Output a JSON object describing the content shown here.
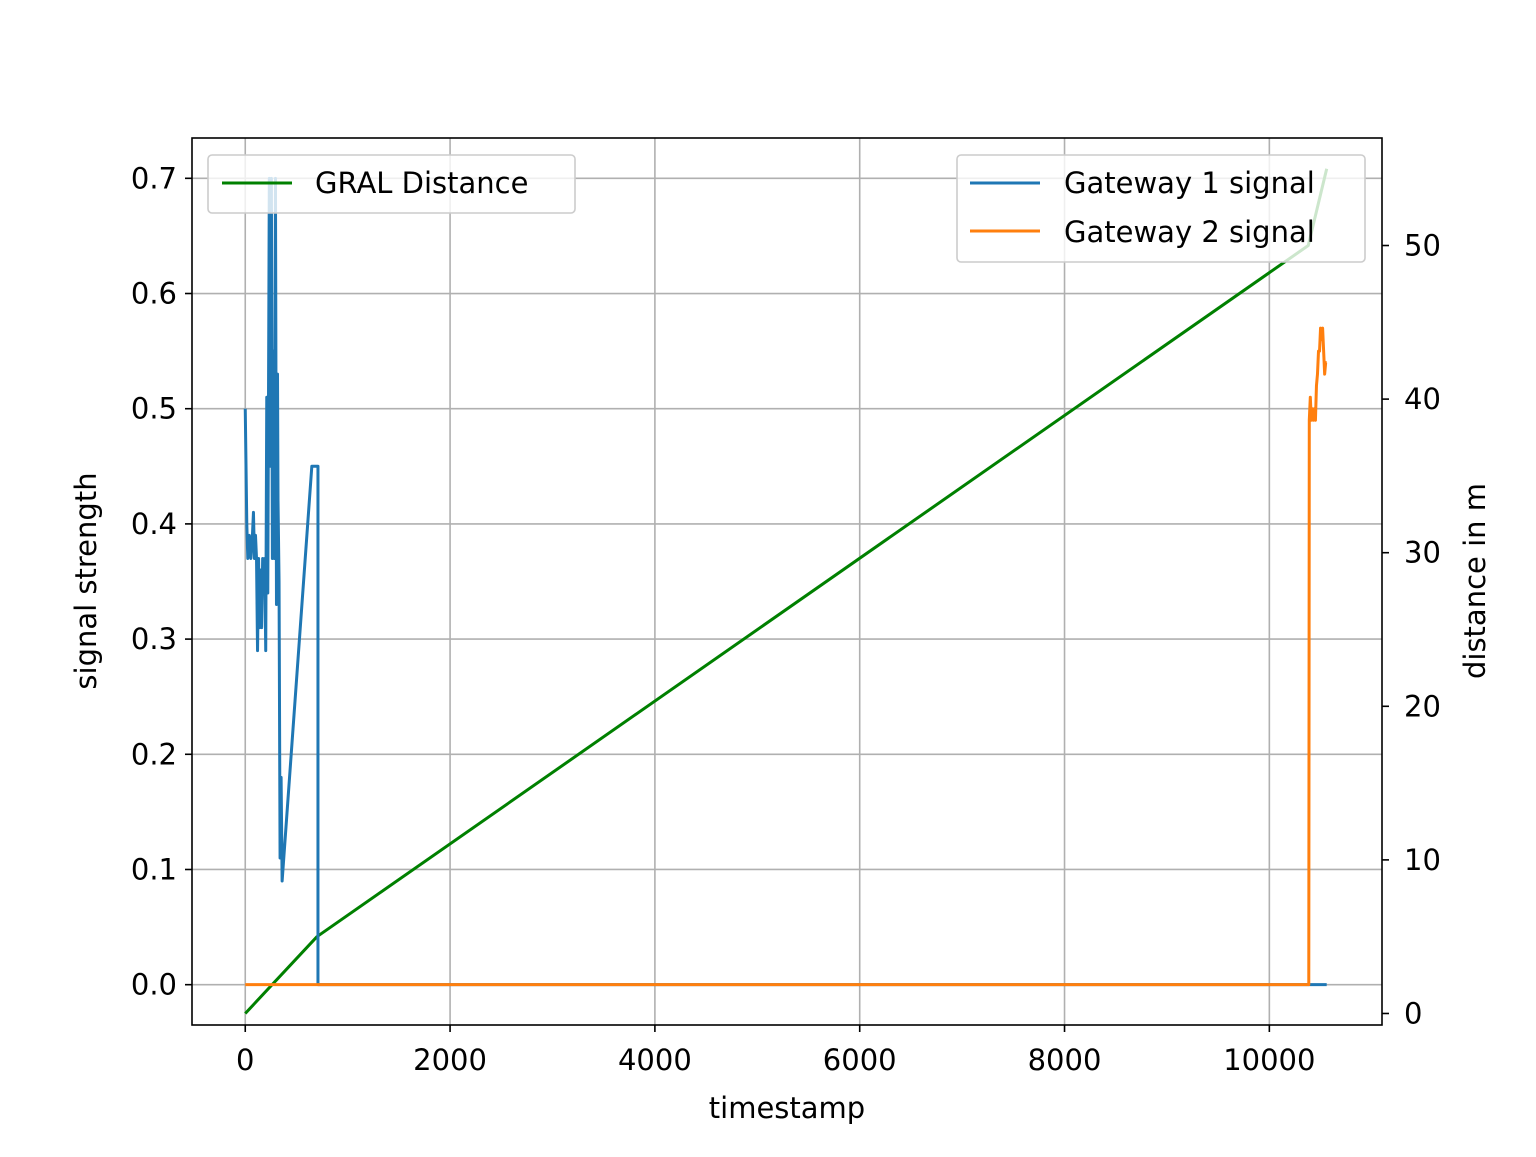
{
  "chart_data": {
    "type": "line",
    "xlabel": "timestamp",
    "ylabel": "signal strength",
    "y2label": "distance in m",
    "xlim": [
      -520,
      11100
    ],
    "ylim": [
      -0.035,
      0.735
    ],
    "y2lim": [
      -0.75,
      57.0
    ],
    "x_ticks": [
      0,
      2000,
      4000,
      6000,
      8000,
      10000
    ],
    "y_ticks": [
      0.0,
      0.1,
      0.2,
      0.3,
      0.4,
      0.5,
      0.6,
      0.7
    ],
    "y2_ticks": [
      0,
      10,
      20,
      30,
      40,
      50
    ],
    "x_tick_labels": [
      "0",
      "2000",
      "4000",
      "6000",
      "8000",
      "10000"
    ],
    "y_tick_labels": [
      "0.0",
      "0.1",
      "0.2",
      "0.3",
      "0.4",
      "0.5",
      "0.6",
      "0.7"
    ],
    "y2_tick_labels": [
      "0",
      "10",
      "20",
      "30",
      "40",
      "50"
    ],
    "grid": true,
    "legend_left_position": "upper-left",
    "legend_right_position": "upper-right",
    "series": [
      {
        "name": "Gateway 1 signal",
        "axis": "left",
        "color": "#1f77b4",
        "points": [
          [
            0,
            0.5
          ],
          [
            15,
            0.4
          ],
          [
            25,
            0.37
          ],
          [
            40,
            0.39
          ],
          [
            55,
            0.37
          ],
          [
            70,
            0.39
          ],
          [
            80,
            0.41
          ],
          [
            90,
            0.37
          ],
          [
            100,
            0.39
          ],
          [
            110,
            0.37
          ],
          [
            120,
            0.29
          ],
          [
            130,
            0.37
          ],
          [
            140,
            0.31
          ],
          [
            150,
            0.36
          ],
          [
            160,
            0.31
          ],
          [
            170,
            0.37
          ],
          [
            180,
            0.34
          ],
          [
            190,
            0.37
          ],
          [
            200,
            0.29
          ],
          [
            210,
            0.51
          ],
          [
            220,
            0.34
          ],
          [
            235,
            0.7
          ],
          [
            245,
            0.45
          ],
          [
            255,
            0.7
          ],
          [
            265,
            0.37
          ],
          [
            275,
            0.55
          ],
          [
            285,
            0.37
          ],
          [
            295,
            0.7
          ],
          [
            305,
            0.33
          ],
          [
            315,
            0.53
          ],
          [
            320,
            0.42
          ],
          [
            330,
            0.35
          ],
          [
            340,
            0.11
          ],
          [
            350,
            0.18
          ],
          [
            360,
            0.09
          ],
          [
            650,
            0.45
          ],
          [
            700,
            0.45
          ],
          [
            710,
            0.45
          ],
          [
            710,
            0.0
          ],
          [
            10560,
            0.0
          ]
        ]
      },
      {
        "name": "Gateway 2 signal",
        "axis": "left",
        "color": "#ff7f0e",
        "points": [
          [
            0,
            0.0
          ],
          [
            10385,
            0.0
          ],
          [
            10390,
            0.49
          ],
          [
            10400,
            0.51
          ],
          [
            10410,
            0.49
          ],
          [
            10420,
            0.5
          ],
          [
            10430,
            0.49
          ],
          [
            10440,
            0.5
          ],
          [
            10450,
            0.49
          ],
          [
            10460,
            0.52
          ],
          [
            10470,
            0.53
          ],
          [
            10480,
            0.55
          ],
          [
            10490,
            0.55
          ],
          [
            10500,
            0.57
          ],
          [
            10510,
            0.56
          ],
          [
            10520,
            0.57
          ],
          [
            10530,
            0.55
          ],
          [
            10540,
            0.53
          ],
          [
            10550,
            0.54
          ],
          [
            10560,
            0.54
          ]
        ]
      },
      {
        "name": "GRAL Distance",
        "axis": "right",
        "color": "#008000",
        "points": [
          [
            0,
            0
          ],
          [
            700,
            5
          ],
          [
            10380,
            50
          ],
          [
            10560,
            55
          ]
        ]
      }
    ]
  }
}
